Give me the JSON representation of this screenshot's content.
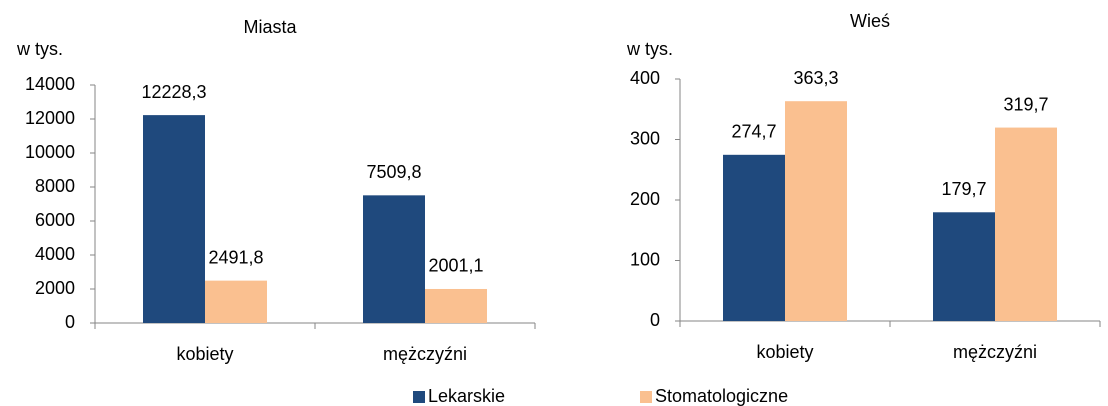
{
  "chart_data": [
    {
      "type": "bar",
      "title": "Miasta",
      "y_label": "w tys.",
      "categories": [
        "kobiety",
        "mężczyźni"
      ],
      "series": [
        {
          "name": "Lekarskie",
          "color": "#1f497d",
          "values": [
            12228.3,
            7509.8
          ],
          "value_labels": [
            "12228,3",
            "7509,8"
          ]
        },
        {
          "name": "Stomatologiczne",
          "color": "#fac090",
          "values": [
            2491.8,
            2001.1
          ],
          "value_labels": [
            "2491,8",
            "2001,1"
          ]
        }
      ],
      "ylim": [
        0,
        14000
      ],
      "yticks": [
        0,
        2000,
        4000,
        6000,
        8000,
        10000,
        12000,
        14000
      ]
    },
    {
      "type": "bar",
      "title": "Wieś",
      "y_label": "w tys.",
      "categories": [
        "kobiety",
        "mężczyźni"
      ],
      "series": [
        {
          "name": "Lekarskie",
          "color": "#1f497d",
          "values": [
            274.7,
            179.7
          ],
          "value_labels": [
            "274,7",
            "179,7"
          ]
        },
        {
          "name": "Stomatologiczne",
          "color": "#fac090",
          "values": [
            363.3,
            319.7
          ],
          "value_labels": [
            "363,3",
            "319,7"
          ]
        }
      ],
      "ylim": [
        0,
        400
      ],
      "yticks": [
        0,
        100,
        200,
        300,
        400
      ]
    }
  ]
}
